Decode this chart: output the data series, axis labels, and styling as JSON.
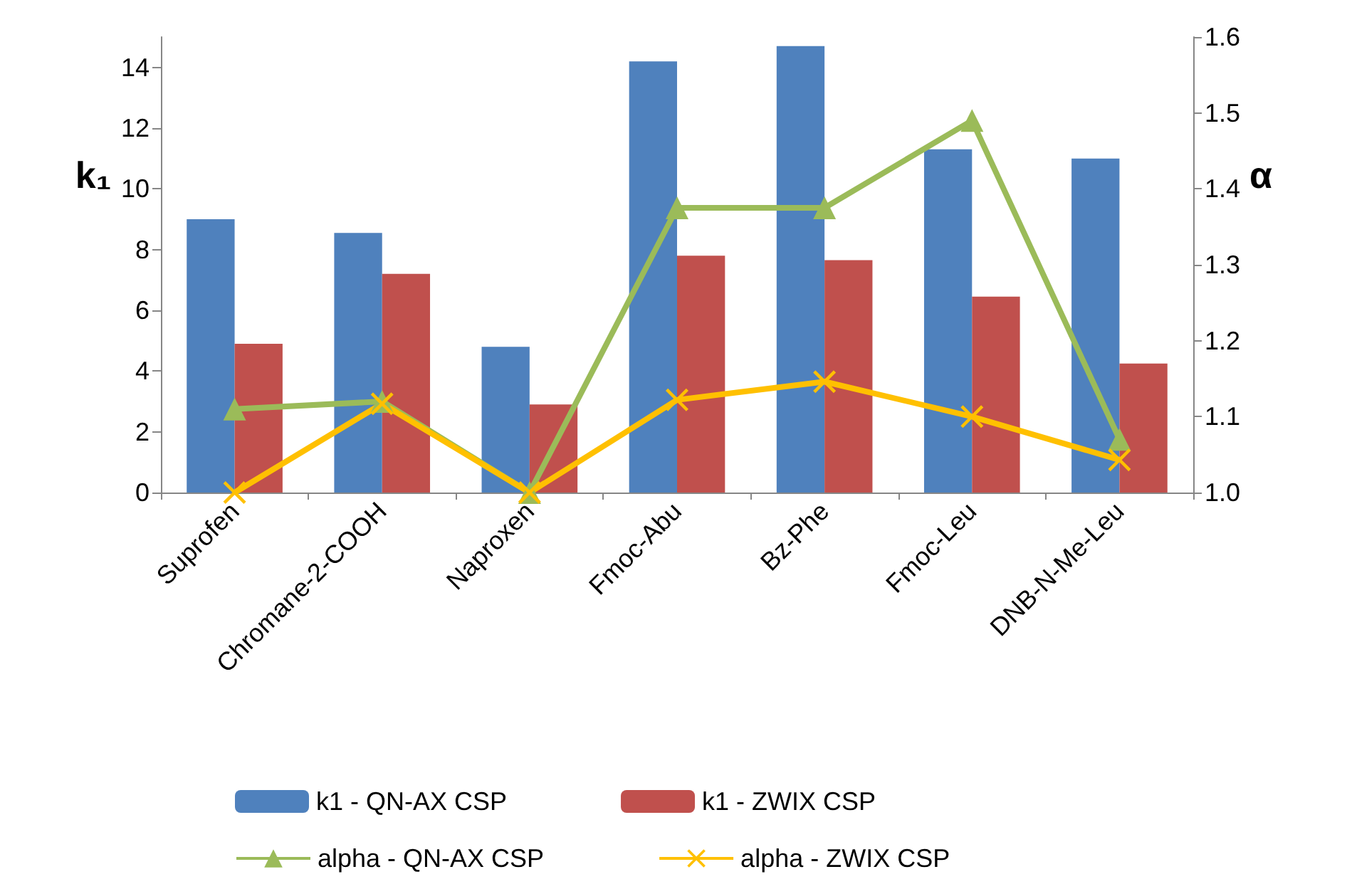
{
  "chart_data": {
    "type": "bar",
    "categories": [
      "Suprofen",
      "Chromane-2-COOH",
      "Naproxen",
      "Fmoc-Abu",
      "Bz-Phe",
      "Fmoc-Leu",
      "DNB-N-Me-Leu"
    ],
    "ylabel": "k₁",
    "y2label": "α",
    "ylim": [
      0,
      15
    ],
    "yticks": [
      0,
      2,
      4,
      6,
      8,
      10,
      12,
      14
    ],
    "y2lim": [
      1.0,
      1.6
    ],
    "y2ticks": [
      {
        "value": 1.0,
        "label": "1.0"
      },
      {
        "value": 1.1,
        "label": "1.1"
      },
      {
        "value": 1.2,
        "label": "1.2"
      },
      {
        "value": 1.3,
        "label": "1.3"
      },
      {
        "value": 1.4,
        "label": "1.4"
      },
      {
        "value": 1.5,
        "label": "1.5"
      },
      {
        "value": 1.6,
        "label": "1.6"
      }
    ],
    "grid": false,
    "legend": "bottom",
    "series": [
      {
        "name": "k1 - QN-AX CSP",
        "color": "#4f81bd",
        "values": [
          9.0,
          8.55,
          4.8,
          14.2,
          14.7,
          11.3,
          11.0
        ]
      },
      {
        "name": "k1 - ZWIX CSP",
        "color": "#c0504d",
        "values": [
          4.9,
          7.2,
          2.9,
          7.8,
          7.65,
          6.45,
          4.25
        ]
      },
      {
        "name": "alpha - QN-AX CSP",
        "type": "line",
        "axis": "y2",
        "marker": "triangle",
        "color": "#9bbb59",
        "values": [
          1.11,
          1.12,
          1.0,
          1.375,
          1.375,
          1.49,
          1.07
        ]
      },
      {
        "name": "alpha - ZWIX CSP",
        "type": "line",
        "axis": "y2",
        "marker": "cross",
        "color": "#ffc000",
        "values": [
          1.0,
          1.117,
          1.0,
          1.122,
          1.146,
          1.1,
          1.043
        ]
      }
    ]
  }
}
